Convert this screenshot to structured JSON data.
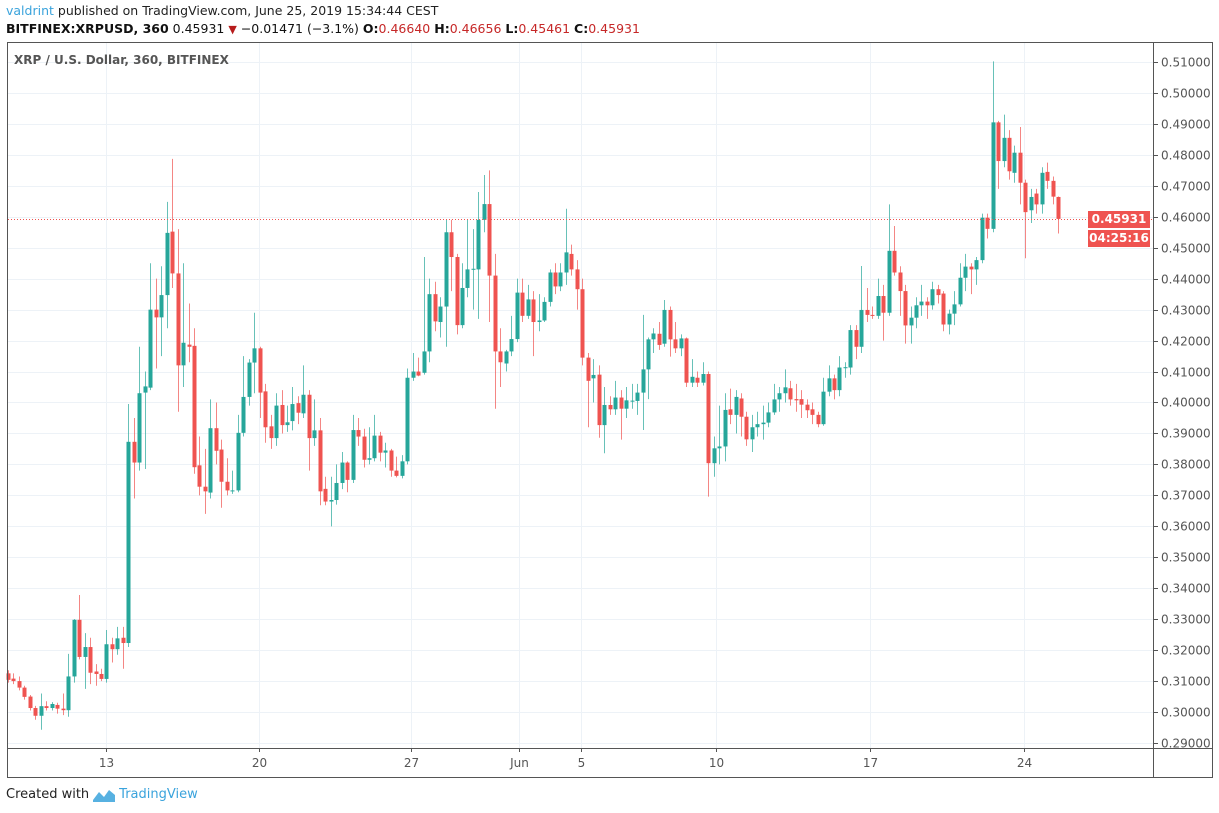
{
  "header": {
    "user": "valdrint",
    "published_text": "published on TradingView.com, June 25, 2019 15:34:44 CEST",
    "symbol": "BITFINEX:XRPUSD, 360",
    "last": "0.45931",
    "change_icon": "triangle-down-icon",
    "change": "−0.01471 (−3.1%)",
    "o_label": "O:",
    "o": "0.46640",
    "h_label": "H:",
    "h": "0.46656",
    "l_label": "L:",
    "l": "0.45461",
    "c_label": "C:",
    "c": "0.45931"
  },
  "legend": "XRP / U.S. Dollar, 360, BITFINEX",
  "price_tag": "0.45931",
  "countdown_tag": "04:25:16",
  "footer": {
    "created_with": "Created with",
    "brand": "TradingView",
    "logo_icon": "tradingview-logo-icon"
  },
  "colors": {
    "up": "#26a69a",
    "down": "#ef5350",
    "grid": "#edf2f7",
    "last_line": "#ef5350",
    "brand": "#3aa3dc"
  },
  "chart_data": {
    "type": "candlestick",
    "interval": "360",
    "ylim": [
      0.29,
      0.51
    ],
    "y_ticks": [
      "0.29000",
      "0.30000",
      "0.31000",
      "0.32000",
      "0.33000",
      "0.34000",
      "0.35000",
      "0.36000",
      "0.37000",
      "0.38000",
      "0.39000",
      "0.40000",
      "0.41000",
      "0.42000",
      "0.43000",
      "0.44000",
      "0.45000",
      "0.46000",
      "0.47000",
      "0.48000",
      "0.49000",
      "0.50000",
      "0.51000"
    ],
    "x_ticks": [
      {
        "label": "13",
        "bar": 17.9
      },
      {
        "label": "20",
        "bar": 45.9
      },
      {
        "label": "27",
        "bar": 73.7
      },
      {
        "label": "Jun",
        "bar": 93.4
      },
      {
        "label": "5",
        "bar": 104.7
      },
      {
        "label": "10",
        "bar": 129.4
      },
      {
        "label": "17",
        "bar": 157.6
      },
      {
        "label": "24",
        "bar": 185.7
      }
    ],
    "last_price": 0.45931,
    "ohlc": [
      [
        0.3125,
        0.3135,
        0.3095,
        0.3104
      ],
      [
        0.3108,
        0.3125,
        0.309,
        0.31
      ],
      [
        0.31,
        0.3115,
        0.307,
        0.3079
      ],
      [
        0.3079,
        0.3085,
        0.304,
        0.3049
      ],
      [
        0.305,
        0.3055,
        0.3005,
        0.3013
      ],
      [
        0.3013,
        0.302,
        0.2975,
        0.2988
      ],
      [
        0.2988,
        0.306,
        0.2943,
        0.3019
      ],
      [
        0.3019,
        0.3035,
        0.3005,
        0.3013
      ],
      [
        0.3013,
        0.3032,
        0.3005,
        0.3026
      ],
      [
        0.3023,
        0.303,
        0.2995,
        0.3011
      ],
      [
        0.3011,
        0.306,
        0.299,
        0.3006
      ],
      [
        0.3006,
        0.3188,
        0.2985,
        0.3115
      ],
      [
        0.3115,
        0.33,
        0.3095,
        0.3298
      ],
      [
        0.3298,
        0.3378,
        0.317,
        0.3178
      ],
      [
        0.3178,
        0.3255,
        0.3075,
        0.321
      ],
      [
        0.321,
        0.324,
        0.309,
        0.3127
      ],
      [
        0.3131,
        0.3155,
        0.3085,
        0.3123
      ],
      [
        0.3123,
        0.314,
        0.31,
        0.3107
      ],
      [
        0.3107,
        0.3265,
        0.3095,
        0.3219
      ],
      [
        0.3219,
        0.324,
        0.316,
        0.3203
      ],
      [
        0.3203,
        0.3275,
        0.3185,
        0.3238
      ],
      [
        0.324,
        0.3275,
        0.314,
        0.3223
      ],
      [
        0.3223,
        0.3995,
        0.321,
        0.3873
      ],
      [
        0.3873,
        0.395,
        0.369,
        0.3806
      ],
      [
        0.3806,
        0.418,
        0.378,
        0.403
      ],
      [
        0.4032,
        0.41,
        0.3785,
        0.4052
      ],
      [
        0.4048,
        0.445,
        0.404,
        0.43
      ],
      [
        0.43,
        0.44,
        0.411,
        0.4275
      ],
      [
        0.4275,
        0.444,
        0.415,
        0.4347
      ],
      [
        0.4347,
        0.4648,
        0.424,
        0.4548
      ],
      [
        0.4552,
        0.4787,
        0.437,
        0.4417
      ],
      [
        0.4417,
        0.456,
        0.397,
        0.412
      ],
      [
        0.412,
        0.445,
        0.405,
        0.4193
      ],
      [
        0.4187,
        0.432,
        0.413,
        0.418
      ],
      [
        0.4183,
        0.424,
        0.377,
        0.3791
      ],
      [
        0.3797,
        0.389,
        0.37,
        0.3728
      ],
      [
        0.3728,
        0.385,
        0.364,
        0.3713
      ],
      [
        0.3709,
        0.401,
        0.369,
        0.3917
      ],
      [
        0.3917,
        0.4,
        0.38,
        0.3844
      ],
      [
        0.3848,
        0.388,
        0.366,
        0.3744
      ],
      [
        0.3744,
        0.382,
        0.37,
        0.3716
      ],
      [
        0.3714,
        0.378,
        0.3705,
        0.3716
      ],
      [
        0.3716,
        0.396,
        0.371,
        0.3902
      ],
      [
        0.3902,
        0.415,
        0.389,
        0.4018
      ],
      [
        0.4018,
        0.414,
        0.399,
        0.4129
      ],
      [
        0.4129,
        0.429,
        0.403,
        0.4175
      ],
      [
        0.4175,
        0.418,
        0.395,
        0.4032
      ],
      [
        0.4036,
        0.406,
        0.387,
        0.392
      ],
      [
        0.3923,
        0.396,
        0.385,
        0.3885
      ],
      [
        0.3885,
        0.403,
        0.386,
        0.399
      ],
      [
        0.3992,
        0.404,
        0.39,
        0.3927
      ],
      [
        0.3927,
        0.399,
        0.3905,
        0.3936
      ],
      [
        0.394,
        0.405,
        0.391,
        0.3995
      ],
      [
        0.3998,
        0.402,
        0.393,
        0.3967
      ],
      [
        0.3965,
        0.412,
        0.395,
        0.4025
      ],
      [
        0.4025,
        0.404,
        0.378,
        0.3885
      ],
      [
        0.3885,
        0.401,
        0.386,
        0.391
      ],
      [
        0.391,
        0.395,
        0.3668,
        0.3713
      ],
      [
        0.3721,
        0.376,
        0.3668,
        0.368
      ],
      [
        0.368,
        0.376,
        0.36,
        0.3685
      ],
      [
        0.3685,
        0.38,
        0.367,
        0.374
      ],
      [
        0.374,
        0.384,
        0.372,
        0.3806
      ],
      [
        0.3806,
        0.381,
        0.371,
        0.375
      ],
      [
        0.375,
        0.396,
        0.374,
        0.3911
      ],
      [
        0.3911,
        0.395,
        0.386,
        0.389
      ],
      [
        0.389,
        0.3915,
        0.379,
        0.3815
      ],
      [
        0.3815,
        0.392,
        0.38,
        0.382
      ],
      [
        0.382,
        0.396,
        0.381,
        0.3893
      ],
      [
        0.3893,
        0.3905,
        0.381,
        0.3838
      ],
      [
        0.3838,
        0.387,
        0.379,
        0.3845
      ],
      [
        0.3845,
        0.385,
        0.376,
        0.378
      ],
      [
        0.378,
        0.3825,
        0.3758,
        0.3763
      ],
      [
        0.3763,
        0.383,
        0.3755,
        0.381
      ],
      [
        0.381,
        0.411,
        0.38,
        0.408
      ],
      [
        0.408,
        0.416,
        0.407,
        0.41
      ],
      [
        0.41,
        0.4145,
        0.4085,
        0.4087
      ],
      [
        0.4096,
        0.447,
        0.409,
        0.4165
      ],
      [
        0.4165,
        0.44,
        0.413,
        0.435
      ],
      [
        0.435,
        0.439,
        0.423,
        0.4262
      ],
      [
        0.426,
        0.434,
        0.421,
        0.431
      ],
      [
        0.431,
        0.459,
        0.418,
        0.455
      ],
      [
        0.455,
        0.459,
        0.436,
        0.447
      ],
      [
        0.447,
        0.448,
        0.422,
        0.425
      ],
      [
        0.425,
        0.445,
        0.424,
        0.437
      ],
      [
        0.437,
        0.459,
        0.434,
        0.443
      ],
      [
        0.443,
        0.456,
        0.43,
        0.4432
      ],
      [
        0.443,
        0.468,
        0.427,
        0.459
      ],
      [
        0.459,
        0.4735,
        0.455,
        0.4641
      ],
      [
        0.4641,
        0.475,
        0.426,
        0.441
      ],
      [
        0.441,
        0.448,
        0.398,
        0.4165
      ],
      [
        0.4165,
        0.424,
        0.405,
        0.413
      ],
      [
        0.4126,
        0.417,
        0.41,
        0.4165
      ],
      [
        0.4165,
        0.428,
        0.415,
        0.4205
      ],
      [
        0.4205,
        0.44,
        0.4195,
        0.4355
      ],
      [
        0.4355,
        0.44,
        0.426,
        0.428
      ],
      [
        0.428,
        0.438,
        0.427,
        0.4333
      ],
      [
        0.4333,
        0.436,
        0.415,
        0.426
      ],
      [
        0.426,
        0.435,
        0.423,
        0.4265
      ],
      [
        0.4265,
        0.434,
        0.426,
        0.4325
      ],
      [
        0.4325,
        0.443,
        0.431,
        0.442
      ],
      [
        0.442,
        0.445,
        0.435,
        0.4375
      ],
      [
        0.4375,
        0.445,
        0.436,
        0.442
      ],
      [
        0.442,
        0.4626,
        0.438,
        0.4485
      ],
      [
        0.448,
        0.451,
        0.441,
        0.443
      ],
      [
        0.443,
        0.446,
        0.43,
        0.4366
      ],
      [
        0.4366,
        0.44,
        0.412,
        0.4145
      ],
      [
        0.4145,
        0.416,
        0.392,
        0.407
      ],
      [
        0.4078,
        0.414,
        0.4,
        0.4089
      ],
      [
        0.409,
        0.412,
        0.3886,
        0.3927
      ],
      [
        0.3927,
        0.405,
        0.3836,
        0.3992
      ],
      [
        0.3992,
        0.402,
        0.396,
        0.3978
      ],
      [
        0.3978,
        0.407,
        0.396,
        0.4016
      ],
      [
        0.4016,
        0.404,
        0.388,
        0.398
      ],
      [
        0.398,
        0.405,
        0.395,
        0.4007
      ],
      [
        0.4005,
        0.406,
        0.398,
        0.4006
      ],
      [
        0.4005,
        0.406,
        0.396,
        0.4032
      ],
      [
        0.4032,
        0.4283,
        0.3911,
        0.4107
      ],
      [
        0.4107,
        0.421,
        0.4011,
        0.4204
      ],
      [
        0.4204,
        0.424,
        0.416,
        0.4223
      ],
      [
        0.4222,
        0.426,
        0.417,
        0.4186
      ],
      [
        0.419,
        0.4331,
        0.418,
        0.4299
      ],
      [
        0.4299,
        0.431,
        0.4148,
        0.4204
      ],
      [
        0.4204,
        0.426,
        0.416,
        0.4175
      ],
      [
        0.4175,
        0.422,
        0.415,
        0.4207
      ],
      [
        0.4207,
        0.421,
        0.405,
        0.4064
      ],
      [
        0.4064,
        0.414,
        0.405,
        0.4083
      ],
      [
        0.408,
        0.41,
        0.405,
        0.4064
      ],
      [
        0.4064,
        0.413,
        0.4055,
        0.4092
      ],
      [
        0.4092,
        0.41,
        0.3696,
        0.3804
      ],
      [
        0.3804,
        0.389,
        0.376,
        0.3852
      ],
      [
        0.3852,
        0.399,
        0.38,
        0.3858
      ],
      [
        0.3858,
        0.403,
        0.381,
        0.3976
      ],
      [
        0.3978,
        0.4045,
        0.393,
        0.396
      ],
      [
        0.396,
        0.404,
        0.39,
        0.4018
      ],
      [
        0.4013,
        0.403,
        0.389,
        0.3954
      ],
      [
        0.3954,
        0.397,
        0.386,
        0.3881
      ],
      [
        0.3881,
        0.396,
        0.384,
        0.392
      ],
      [
        0.392,
        0.397,
        0.389,
        0.393
      ],
      [
        0.393,
        0.399,
        0.388,
        0.3935
      ],
      [
        0.3935,
        0.4,
        0.392,
        0.3968
      ],
      [
        0.3968,
        0.406,
        0.396,
        0.401
      ],
      [
        0.401,
        0.405,
        0.397,
        0.403
      ],
      [
        0.403,
        0.4107,
        0.4,
        0.4049
      ],
      [
        0.4046,
        0.407,
        0.399,
        0.401
      ],
      [
        0.4011,
        0.406,
        0.397,
        0.4007
      ],
      [
        0.4011,
        0.404,
        0.395,
        0.3993
      ],
      [
        0.3993,
        0.401,
        0.395,
        0.3975
      ],
      [
        0.3978,
        0.4,
        0.393,
        0.396
      ],
      [
        0.396,
        0.397,
        0.392,
        0.393
      ],
      [
        0.393,
        0.408,
        0.3925,
        0.4035
      ],
      [
        0.4035,
        0.412,
        0.402,
        0.4078
      ],
      [
        0.4078,
        0.409,
        0.401,
        0.404
      ],
      [
        0.404,
        0.415,
        0.402,
        0.4113
      ],
      [
        0.4113,
        0.413,
        0.408,
        0.4114
      ],
      [
        0.4113,
        0.425,
        0.409,
        0.4234
      ],
      [
        0.4234,
        0.425,
        0.414,
        0.418
      ],
      [
        0.418,
        0.4441,
        0.416,
        0.4299
      ],
      [
        0.4299,
        0.437,
        0.426,
        0.4283
      ],
      [
        0.4283,
        0.431,
        0.427,
        0.428
      ],
      [
        0.428,
        0.44,
        0.427,
        0.4344
      ],
      [
        0.4344,
        0.438,
        0.42,
        0.429
      ],
      [
        0.429,
        0.464,
        0.428,
        0.449
      ],
      [
        0.449,
        0.457,
        0.441,
        0.442
      ],
      [
        0.442,
        0.444,
        0.428,
        0.436
      ],
      [
        0.436,
        0.438,
        0.419,
        0.4249
      ],
      [
        0.4249,
        0.431,
        0.419,
        0.4274
      ],
      [
        0.4274,
        0.434,
        0.424,
        0.4314
      ],
      [
        0.4314,
        0.438,
        0.428,
        0.4326
      ],
      [
        0.4326,
        0.434,
        0.427,
        0.4314
      ],
      [
        0.4314,
        0.439,
        0.43,
        0.4366
      ],
      [
        0.4366,
        0.438,
        0.432,
        0.4347
      ],
      [
        0.4352,
        0.436,
        0.423,
        0.4252
      ],
      [
        0.4252,
        0.43,
        0.422,
        0.4287
      ],
      [
        0.4287,
        0.436,
        0.425,
        0.4317
      ],
      [
        0.4317,
        0.445,
        0.431,
        0.4403
      ],
      [
        0.4403,
        0.448,
        0.436,
        0.4439
      ],
      [
        0.4439,
        0.445,
        0.435,
        0.443
      ],
      [
        0.443,
        0.447,
        0.438,
        0.446
      ],
      [
        0.446,
        0.461,
        0.445,
        0.4597
      ],
      [
        0.4597,
        0.461,
        0.453,
        0.4561
      ],
      [
        0.4561,
        0.5102,
        0.455,
        0.4905
      ],
      [
        0.4905,
        0.491,
        0.469,
        0.478
      ],
      [
        0.478,
        0.493,
        0.476,
        0.4855
      ],
      [
        0.4855,
        0.488,
        0.472,
        0.4747
      ],
      [
        0.4742,
        0.483,
        0.471,
        0.4807
      ],
      [
        0.4807,
        0.489,
        0.464,
        0.471
      ],
      [
        0.471,
        0.472,
        0.4466,
        0.4615
      ],
      [
        0.4621,
        0.469,
        0.458,
        0.4664
      ],
      [
        0.4675,
        0.469,
        0.461,
        0.464
      ],
      [
        0.464,
        0.476,
        0.461,
        0.4742
      ],
      [
        0.4745,
        0.4775,
        0.469,
        0.4716
      ],
      [
        0.4716,
        0.473,
        0.464,
        0.4665
      ],
      [
        0.4664,
        0.46656,
        0.45461,
        0.45931
      ]
    ]
  }
}
